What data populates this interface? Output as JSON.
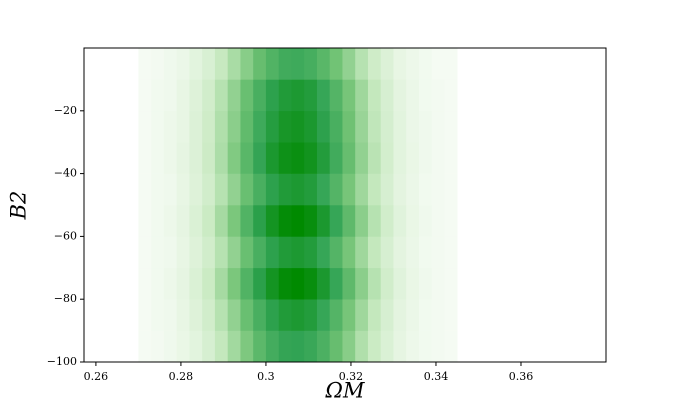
{
  "chart_data": {
    "type": "histogram2d",
    "xlabel": "ΩM",
    "ylabel": "B2",
    "xlim": [
      0.2572,
      0.38
    ],
    "ylim": [
      -100,
      0
    ],
    "xticks": [
      0.26,
      0.28,
      0.3,
      0.32,
      0.34,
      0.36
    ],
    "yticks": [
      {
        "value": -100,
        "label": "−100"
      },
      {
        "value": -80,
        "label": "−80"
      },
      {
        "value": -60,
        "label": "−60"
      },
      {
        "value": -40,
        "label": "−40"
      },
      {
        "value": -20,
        "label": "−20"
      }
    ],
    "colormap": [
      "#f7fcf5",
      "#c7e9c0",
      "#74c476",
      "#31a354",
      "#008a00"
    ],
    "xbins": [
      0.27,
      0.273,
      0.276,
      0.279,
      0.282,
      0.285,
      0.288,
      0.291,
      0.294,
      0.297,
      0.3,
      0.303,
      0.306,
      0.309,
      0.312,
      0.315,
      0.318,
      0.321,
      0.324,
      0.327,
      0.33,
      0.333,
      0.336,
      0.339,
      0.342,
      0.345
    ],
    "ybins": [
      -100,
      -90,
      -80,
      -70,
      -60,
      -50,
      -40,
      -30,
      -20,
      -10,
      0
    ],
    "z": [
      [
        1,
        2,
        4,
        7,
        11,
        17,
        26,
        36,
        47,
        59,
        68,
        74,
        75,
        72,
        65,
        55,
        44,
        32,
        23,
        15,
        9,
        5,
        3,
        2,
        1
      ],
      [
        1,
        3,
        4,
        8,
        13,
        20,
        30,
        41,
        54,
        66,
        77,
        83,
        85,
        82,
        73,
        62,
        49,
        37,
        26,
        17,
        10,
        6,
        3,
        2,
        1
      ],
      [
        1,
        3,
        5,
        9,
        15,
        23,
        35,
        48,
        63,
        78,
        90,
        98,
        100,
        96,
        86,
        73,
        58,
        43,
        30,
        20,
        12,
        7,
        4,
        2,
        1
      ],
      [
        1,
        3,
        4,
        8,
        13,
        20,
        30,
        41,
        54,
        66,
        77,
        83,
        85,
        82,
        73,
        62,
        49,
        37,
        26,
        17,
        10,
        6,
        3,
        2,
        1
      ],
      [
        1,
        3,
        5,
        9,
        15,
        23,
        35,
        48,
        63,
        78,
        90,
        98,
        100,
        96,
        86,
        73,
        58,
        43,
        30,
        20,
        12,
        7,
        4,
        2,
        1
      ],
      [
        1,
        3,
        4,
        8,
        13,
        20,
        30,
        41,
        54,
        66,
        77,
        83,
        85,
        82,
        73,
        62,
        49,
        37,
        26,
        17,
        10,
        6,
        3,
        2,
        1
      ],
      [
        1,
        3,
        5,
        9,
        14,
        22,
        33,
        46,
        60,
        74,
        86,
        93,
        95,
        91,
        82,
        69,
        55,
        41,
        29,
        19,
        11,
        7,
        4,
        2,
        1
      ],
      [
        1,
        3,
        5,
        8,
        14,
        21,
        32,
        43,
        57,
        70,
        81,
        88,
        90,
        86,
        77,
        66,
        52,
        39,
        27,
        18,
        11,
        6,
        4,
        2,
        1
      ],
      [
        1,
        3,
        4,
        8,
        13,
        20,
        30,
        41,
        54,
        66,
        77,
        83,
        85,
        82,
        73,
        62,
        49,
        37,
        26,
        17,
        10,
        6,
        3,
        2,
        1
      ],
      [
        1,
        2,
        4,
        6,
        11,
        16,
        25,
        34,
        44,
        55,
        63,
        69,
        70,
        67,
        60,
        51,
        41,
        30,
        21,
        14,
        8,
        5,
        3,
        1,
        1
      ]
    ]
  }
}
